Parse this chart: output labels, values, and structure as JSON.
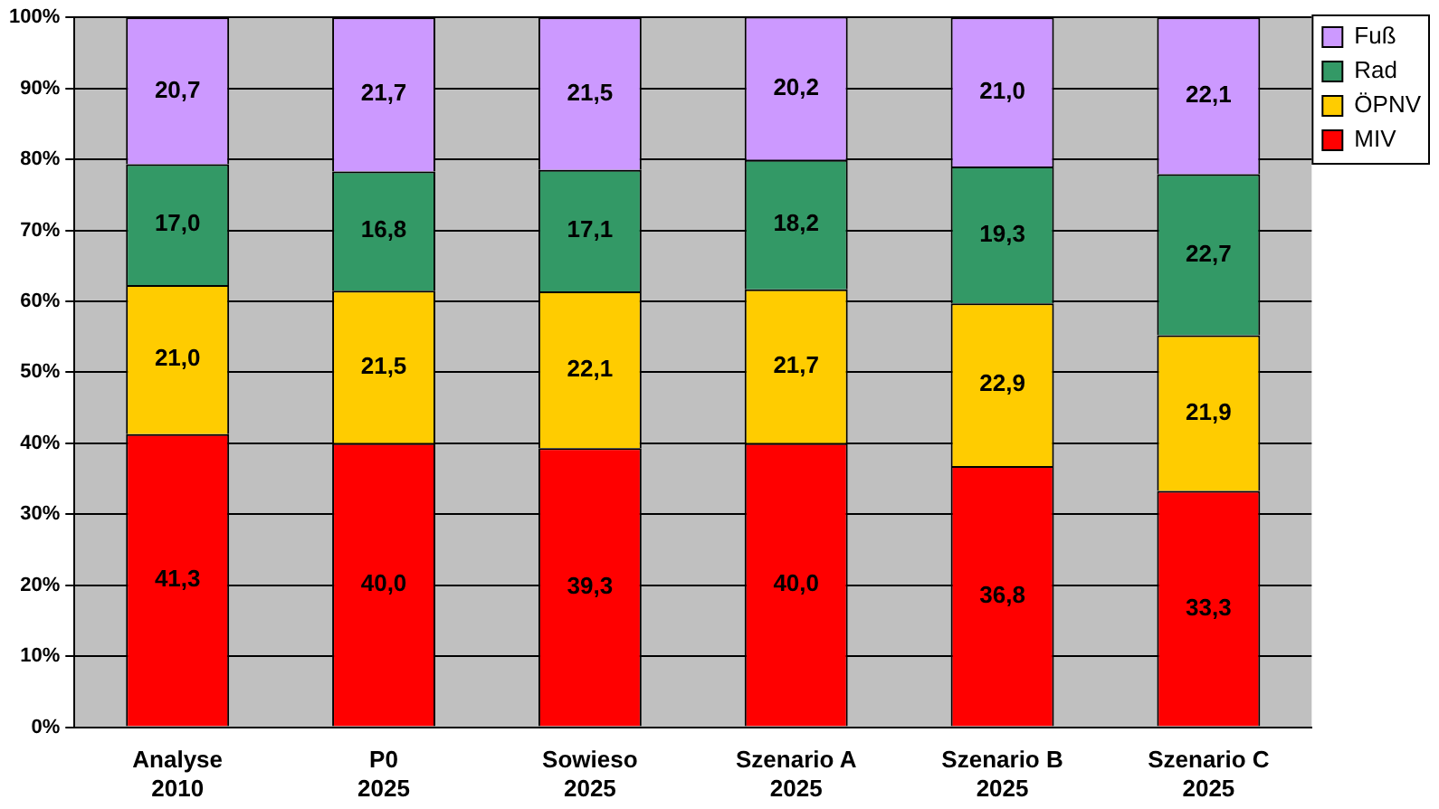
{
  "chart_data": {
    "type": "bar",
    "stacked": true,
    "categories": [
      "Analyse\n2010",
      "P0\n2025",
      "Sowieso\n2025",
      "Szenario A\n2025",
      "Szenario B\n2025",
      "Szenario C\n2025"
    ],
    "series": [
      {
        "name": "MIV",
        "color": "#ff0000",
        "values": [
          41.3,
          40.0,
          39.3,
          40.0,
          36.8,
          33.3
        ],
        "value_labels": [
          "41,3",
          "40,0",
          "39,3",
          "40,0",
          "36,8",
          "33,3"
        ]
      },
      {
        "name": "ÖPNV",
        "color": "#ffcc00",
        "values": [
          21.0,
          21.5,
          22.1,
          21.7,
          22.9,
          21.9
        ],
        "value_labels": [
          "21,0",
          "21,5",
          "22,1",
          "21,7",
          "22,9",
          "21,9"
        ]
      },
      {
        "name": "Rad",
        "color": "#339966",
        "values": [
          17.0,
          16.8,
          17.1,
          18.2,
          19.3,
          22.7
        ],
        "value_labels": [
          "17,0",
          "16,8",
          "17,1",
          "18,2",
          "19,3",
          "22,7"
        ]
      },
      {
        "name": "Fuß",
        "color": "#cc99ff",
        "values": [
          20.7,
          21.7,
          21.5,
          20.2,
          21.0,
          22.1
        ],
        "value_labels": [
          "20,7",
          "21,7",
          "21,5",
          "20,2",
          "21,0",
          "22,1"
        ]
      }
    ],
    "ylim": [
      0,
      100
    ],
    "yticks": [
      {
        "value": 0,
        "label": "0%"
      },
      {
        "value": 10,
        "label": "10%"
      },
      {
        "value": 20,
        "label": "20%"
      },
      {
        "value": 30,
        "label": "30%"
      },
      {
        "value": 40,
        "label": "40%"
      },
      {
        "value": 50,
        "label": "50%"
      },
      {
        "value": 60,
        "label": "60%"
      },
      {
        "value": 70,
        "label": "70%"
      },
      {
        "value": 80,
        "label": "80%"
      },
      {
        "value": 90,
        "label": "90%"
      },
      {
        "value": 100,
        "label": "100%"
      }
    ],
    "grid": "y",
    "legend": "top right"
  }
}
